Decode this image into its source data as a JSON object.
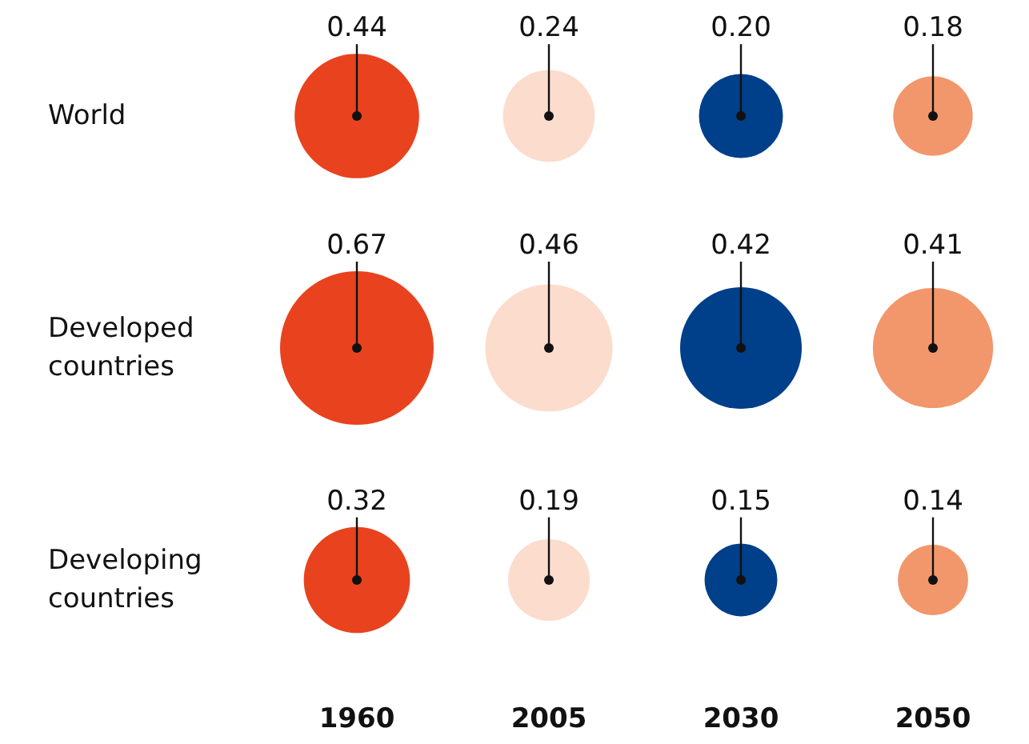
{
  "chart_data": {
    "type": "other",
    "categories": [
      "1960",
      "2005",
      "2030",
      "2050"
    ],
    "y_categories": [
      "World",
      "Developed\ncountries",
      "Developing\ncountries"
    ],
    "series": [
      {
        "values": [
          0.44,
          0.24,
          0.2,
          0.18
        ],
        "value_labels": [
          "0.44",
          "0.24",
          "0.20",
          "0.18"
        ],
        "colors": [
          "#e8431e",
          "#fbdccd",
          "#003f8a",
          "#f2966b"
        ]
      },
      {
        "values": [
          0.67,
          0.46,
          0.42,
          0.41
        ],
        "value_labels": [
          "0.67",
          "0.46",
          "0.42",
          "0.41"
        ],
        "colors": [
          "#e8431e",
          "#fbdccd",
          "#003f8a",
          "#f2966b"
        ]
      },
      {
        "values": [
          0.32,
          0.19,
          0.15,
          0.14
        ],
        "value_labels": [
          "0.32",
          "0.19",
          "0.15",
          "0.14"
        ],
        "colors": [
          "#e8431e",
          "#fbdccd",
          "#003f8a",
          "#f2966b"
        ]
      }
    ]
  }
}
